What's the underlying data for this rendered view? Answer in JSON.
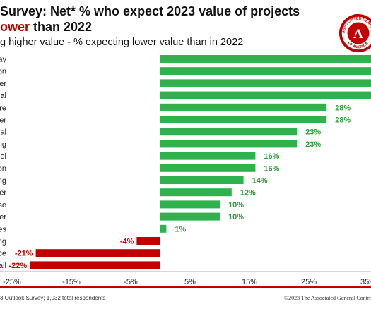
{
  "header": {
    "title_line1": "Survey: Net* % who expect 2023 value of projects",
    "title_line2_red": "ower",
    "title_line2_rest": " than 2022",
    "subtitle": "g higher value - % expecting lower value than in 2022"
  },
  "logo": {
    "icon": "agc-seal-icon",
    "text_top": "ASSOCIATED GENERAL CONT",
    "text_bottom": "OF AMERICA",
    "letter": "A"
  },
  "footer": {
    "left": "3 Outlook Survey; 1,032 total respondents",
    "right": "©2023 The Associated General Contra"
  },
  "colors": {
    "positive": "#2db24d",
    "negative": "#c00000",
    "label_pos": "#2f9e3a",
    "label_neg": "#c00000"
  },
  "chart_data": {
    "type": "bar",
    "orientation": "horizontal",
    "categories": [
      "ay",
      "on",
      "er",
      "al",
      "re",
      "er",
      "al",
      "ng",
      "ol",
      "on",
      "ng",
      "er",
      "se",
      "er",
      "es",
      "ng",
      "ce",
      "ail"
    ],
    "values": [
      36,
      36,
      36,
      36,
      28,
      28,
      23,
      23,
      16,
      16,
      14,
      12,
      10,
      10,
      1,
      -4,
      -21,
      -22
    ],
    "data_labels": [
      "",
      "",
      "",
      "",
      "28%",
      "28%",
      "23%",
      "23%",
      "16%",
      "16%",
      "14%",
      "12%",
      "10%",
      "10%",
      "1%",
      "-4%",
      "-21%",
      "-22%"
    ],
    "xlim": [
      -25,
      35
    ],
    "xticks": [
      -25,
      -15,
      -5,
      5,
      15,
      25,
      35
    ],
    "xtick_labels": [
      "-25%",
      "-15%",
      "-5%",
      "5%",
      "15%",
      "25%",
      "35%"
    ],
    "grid": false
  }
}
